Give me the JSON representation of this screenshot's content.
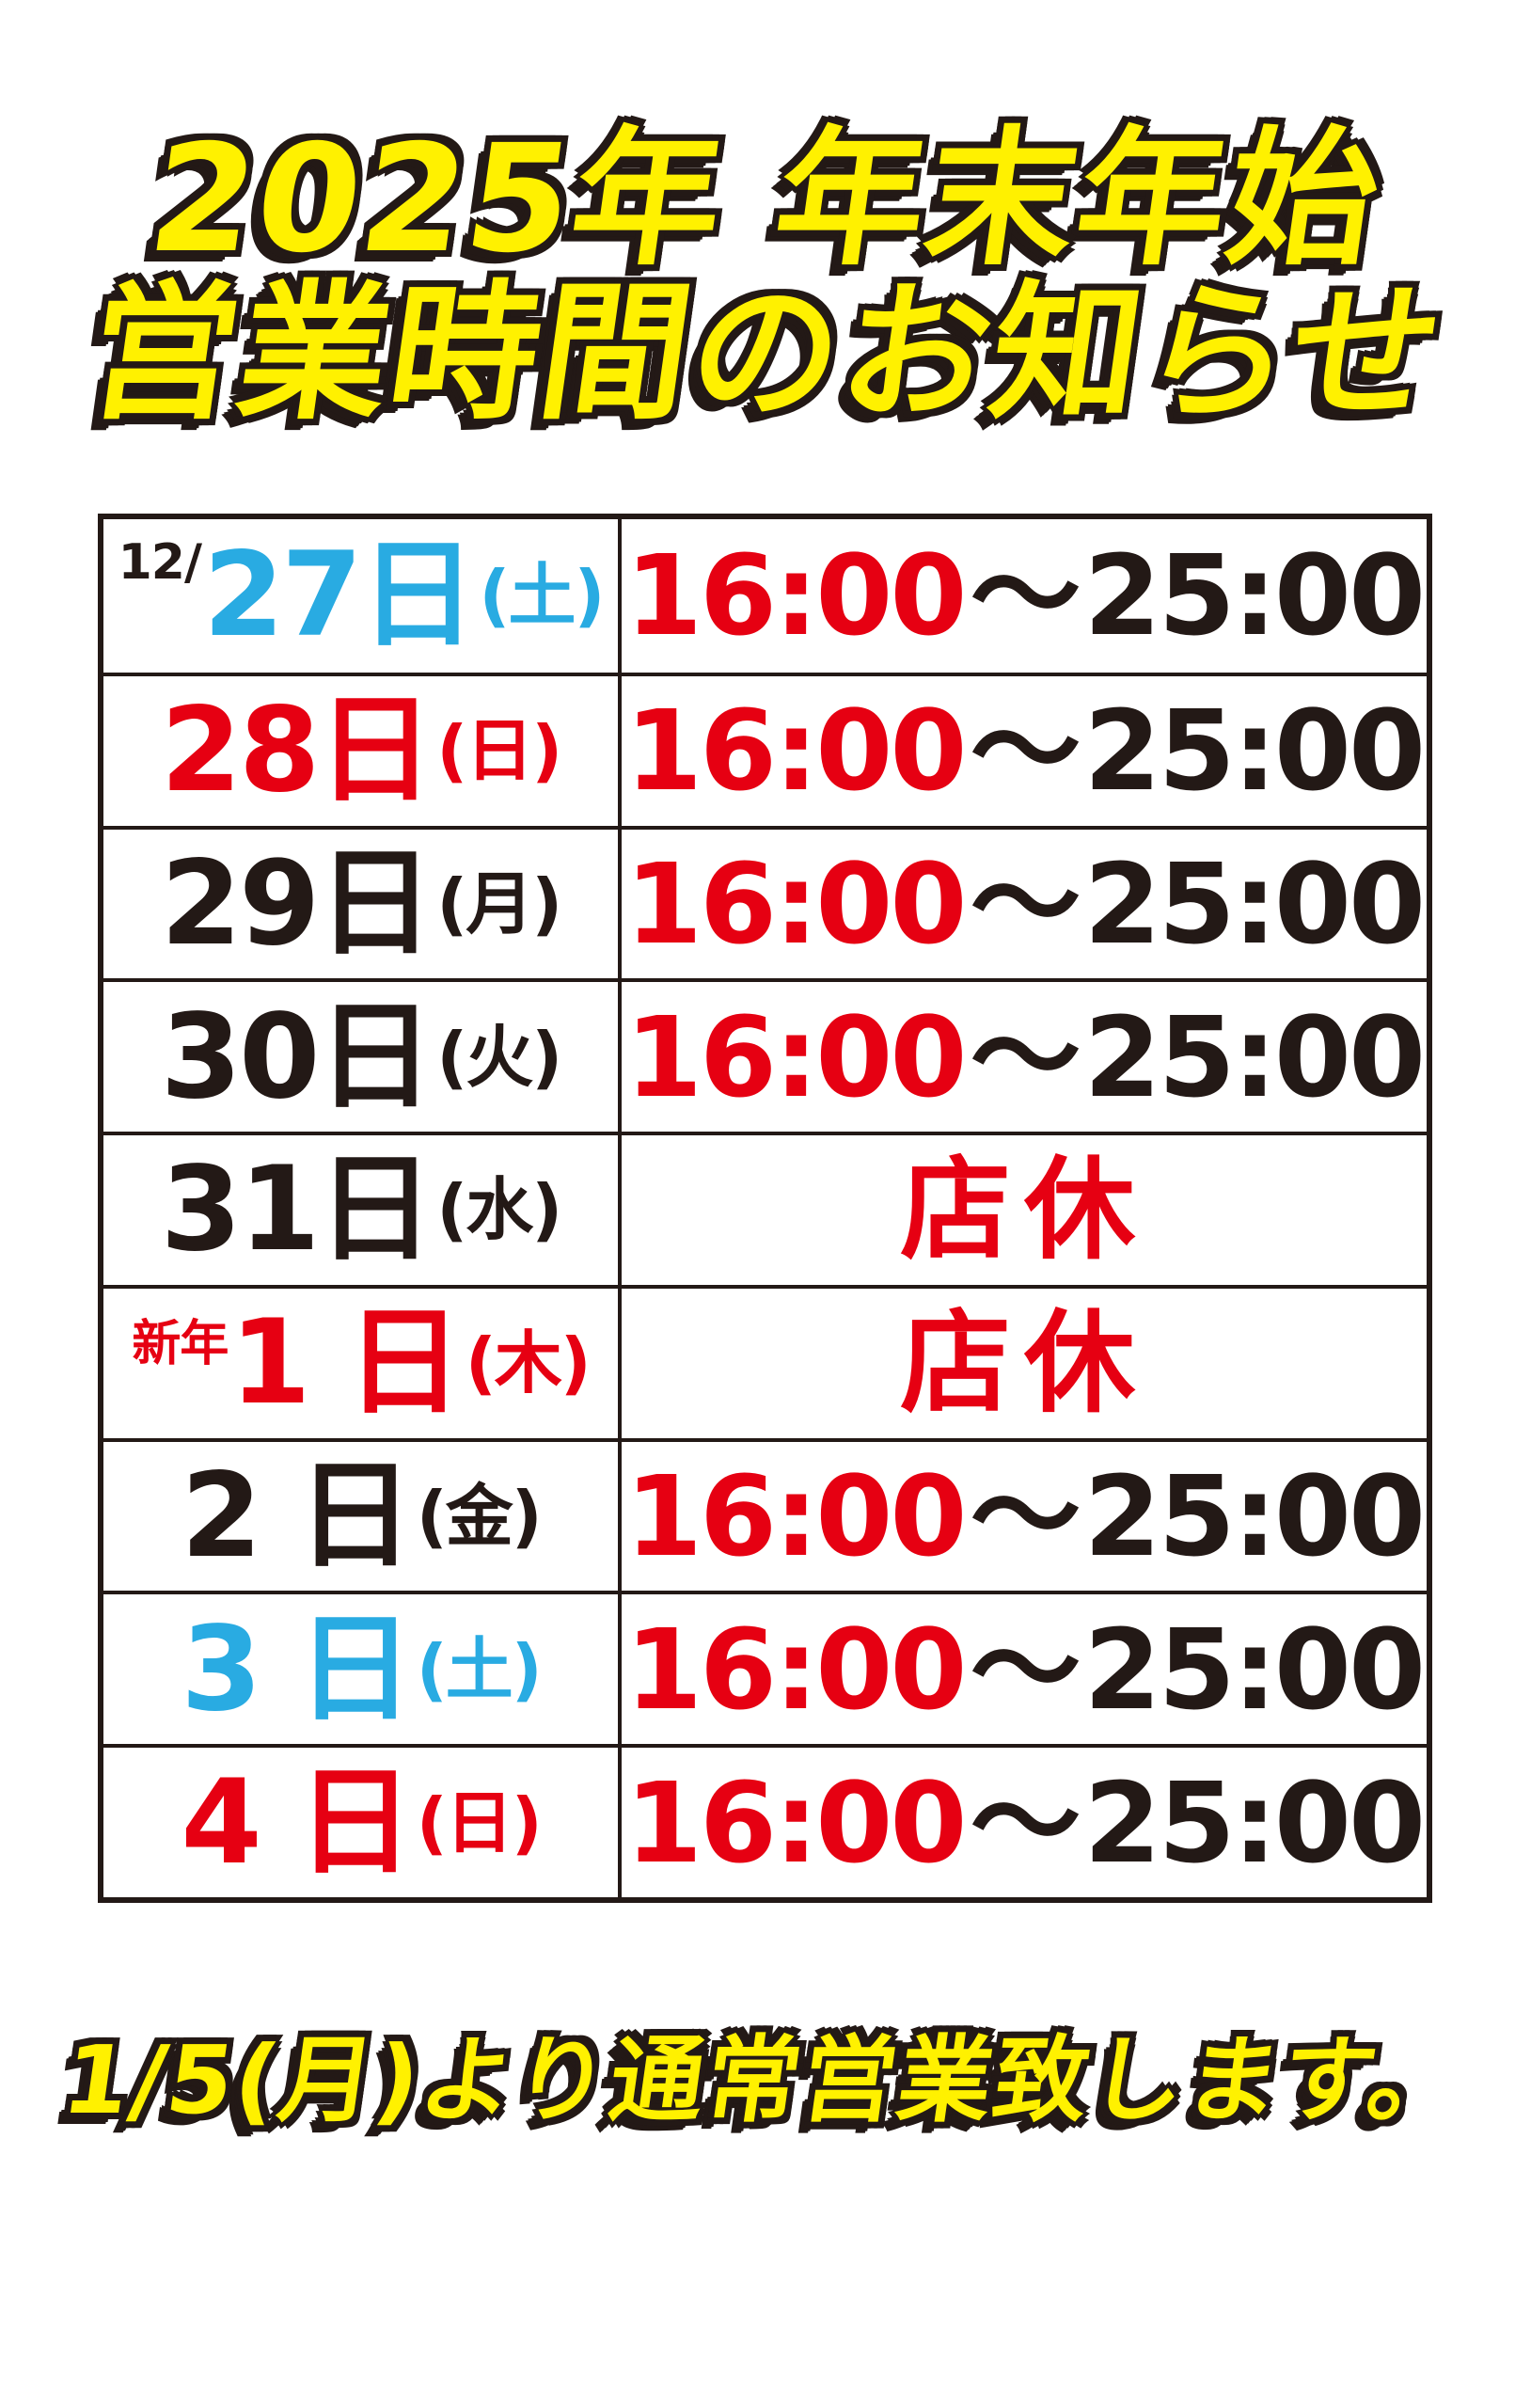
{
  "poster": {
    "title_line1": "2025年 年末年始",
    "title_line2": "営業時間のお知らせ",
    "footer_note": "1/5(月)より通常営業致します。"
  },
  "colors": {
    "highlight_yellow": "#FFF100",
    "outline_black": "#231916",
    "red": "#E60012",
    "blue": "#29ABE2",
    "ink_black": "#231916",
    "background": "#FFFFFF"
  },
  "schedule": {
    "rows": [
      {
        "month_prefix": "12/",
        "date": "27日",
        "weekday": "(土)",
        "date_color": "blue",
        "open": "16:00",
        "wave": "〜",
        "close": "25:00"
      },
      {
        "date": "28日",
        "weekday": "(日)",
        "date_color": "red",
        "open": "16:00",
        "wave": "〜",
        "close": "25:00"
      },
      {
        "date": "29日",
        "weekday": "(月)",
        "date_color": "black",
        "open": "16:00",
        "wave": "〜",
        "close": "25:00"
      },
      {
        "date": "30日",
        "weekday": "(火)",
        "date_color": "black",
        "open": "16:00",
        "wave": "〜",
        "close": "25:00"
      },
      {
        "date": "31日",
        "weekday": "(水)",
        "date_color": "black",
        "closed_label": "店休"
      },
      {
        "year_prefix": "新年",
        "date": "1 日",
        "weekday": "(木)",
        "date_color": "red",
        "closed_label": "店休"
      },
      {
        "date": "2 日",
        "weekday": "(金)",
        "date_color": "black",
        "open": "16:00",
        "wave": "〜",
        "close": "25:00"
      },
      {
        "date": "3 日",
        "weekday": "(土)",
        "date_color": "blue",
        "open": "16:00",
        "wave": "〜",
        "close": "25:00"
      },
      {
        "date": "4 日",
        "weekday": "(日)",
        "date_color": "red",
        "open": "16:00",
        "wave": "〜",
        "close": "25:00"
      }
    ]
  }
}
